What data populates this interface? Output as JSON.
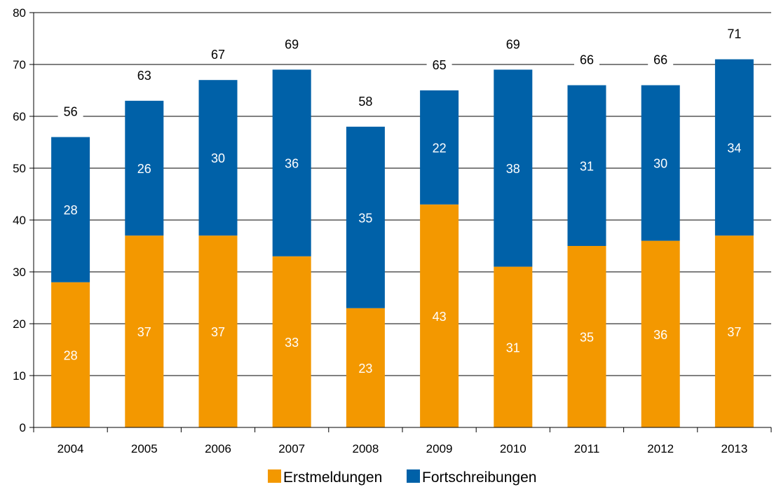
{
  "chart_data": {
    "type": "bar",
    "stacked": true,
    "categories": [
      "2004",
      "2005",
      "2006",
      "2007",
      "2008",
      "2009",
      "2010",
      "2011",
      "2012",
      "2013"
    ],
    "series": [
      {
        "name": "Erstmeldungen",
        "color": "#f39800",
        "values": [
          28,
          37,
          37,
          33,
          23,
          43,
          31,
          35,
          36,
          37
        ]
      },
      {
        "name": "Fortschreibungen",
        "color": "#0061a8",
        "values": [
          28,
          26,
          30,
          36,
          35,
          22,
          38,
          31,
          30,
          34
        ]
      }
    ],
    "totals": [
      56,
      63,
      67,
      69,
      58,
      65,
      69,
      66,
      66,
      71
    ],
    "ylim": [
      0,
      80
    ],
    "yticks": [
      0,
      10,
      20,
      30,
      40,
      50,
      60,
      70,
      80
    ],
    "grid": true,
    "legend": "bottom"
  }
}
